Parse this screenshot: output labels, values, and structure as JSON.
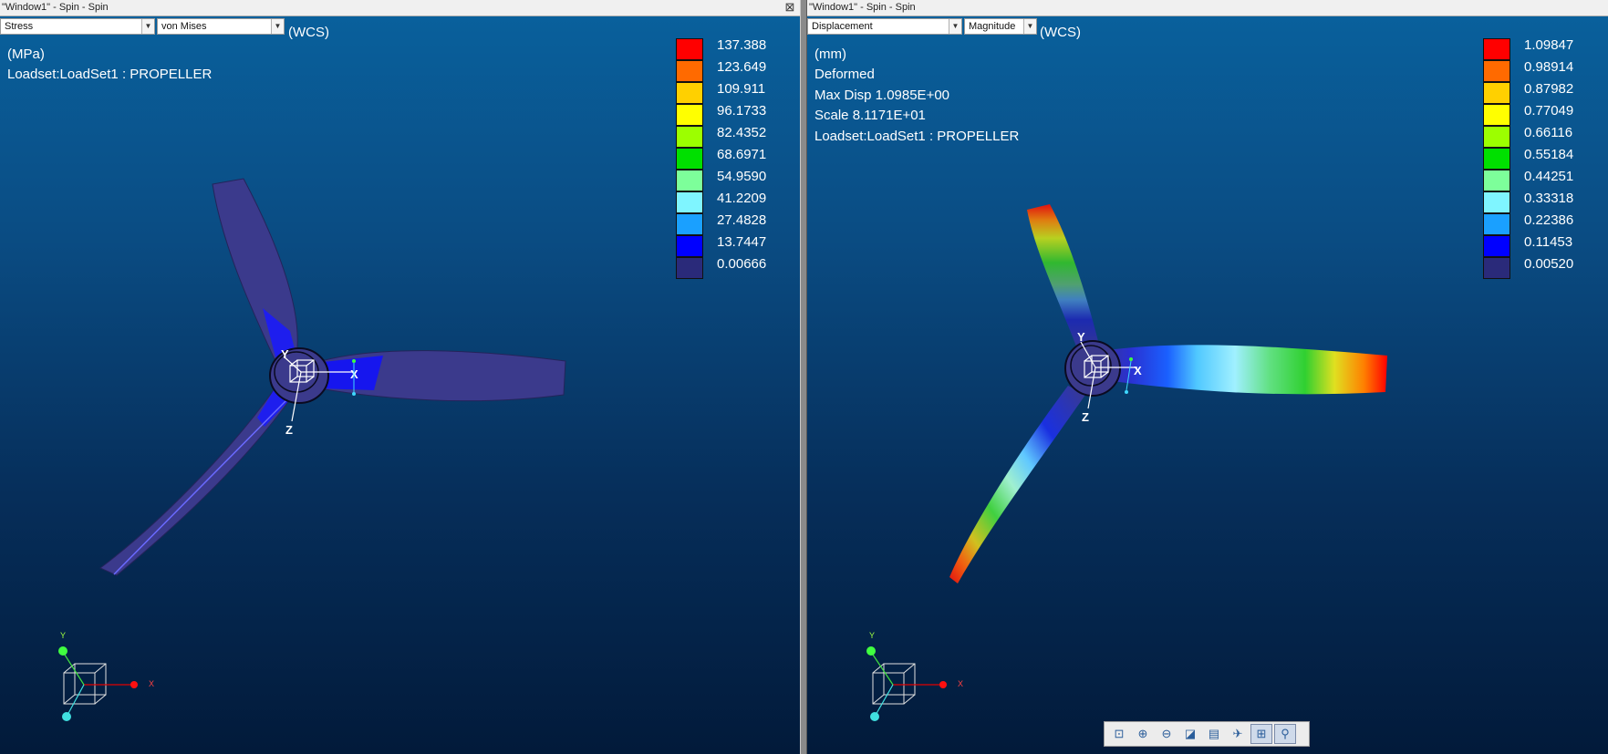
{
  "left": {
    "title": "\"Window1\" - Spin - Spin",
    "result_type": "Stress",
    "component": "von Mises",
    "csys": "(WCS)",
    "info": [
      "(MPa)",
      "Loadset:LoadSet1 :  PROPELLER"
    ],
    "legend": {
      "values": [
        "137.388",
        "123.649",
        "109.911",
        "96.1733",
        "82.4352",
        "68.6971",
        "54.9590",
        "41.2209",
        "27.4828",
        "13.7447",
        "0.00666"
      ],
      "colors": [
        "#ff0000",
        "#ff6a00",
        "#ffd000",
        "#ffff00",
        "#9cff00",
        "#00e000",
        "#7dff9a",
        "#7ff5ff",
        "#1aa0ff",
        "#0000ff",
        "#2a2a7a"
      ]
    },
    "triad": {
      "x": "X",
      "y": "Y"
    }
  },
  "right": {
    "title": "\"Window1\" - Spin - Spin",
    "result_type": "Displacement",
    "component": "Magnitude",
    "csys": "(WCS)",
    "info": [
      "(mm)",
      "Deformed",
      "Max Disp  1.0985E+00",
      "Scale  8.1171E+01",
      "Loadset:LoadSet1 :  PROPELLER"
    ],
    "legend": {
      "values": [
        "1.09847",
        "0.98914",
        "0.87982",
        "0.77049",
        "0.66116",
        "0.55184",
        "0.44251",
        "0.33318",
        "0.22386",
        "0.11453",
        "0.00520"
      ],
      "colors": [
        "#ff0000",
        "#ff6a00",
        "#ffd000",
        "#ffff00",
        "#9cff00",
        "#00e000",
        "#7dff9a",
        "#7ff5ff",
        "#1aa0ff",
        "#0000ff",
        "#2a2a7a"
      ]
    },
    "triad": {
      "x": "X",
      "y": "Y"
    }
  },
  "toolbar": {
    "icons": [
      "zoom-window-icon",
      "zoom-in-icon",
      "zoom-out-icon",
      "repaint-icon",
      "named-views-icon",
      "orient-icon",
      "spin-center-icon",
      "datum-display-icon"
    ],
    "glyphs": [
      "⊡",
      "⊕",
      "⊖",
      "◪",
      "▤",
      "✈",
      "⊞",
      "⚲"
    ]
  }
}
